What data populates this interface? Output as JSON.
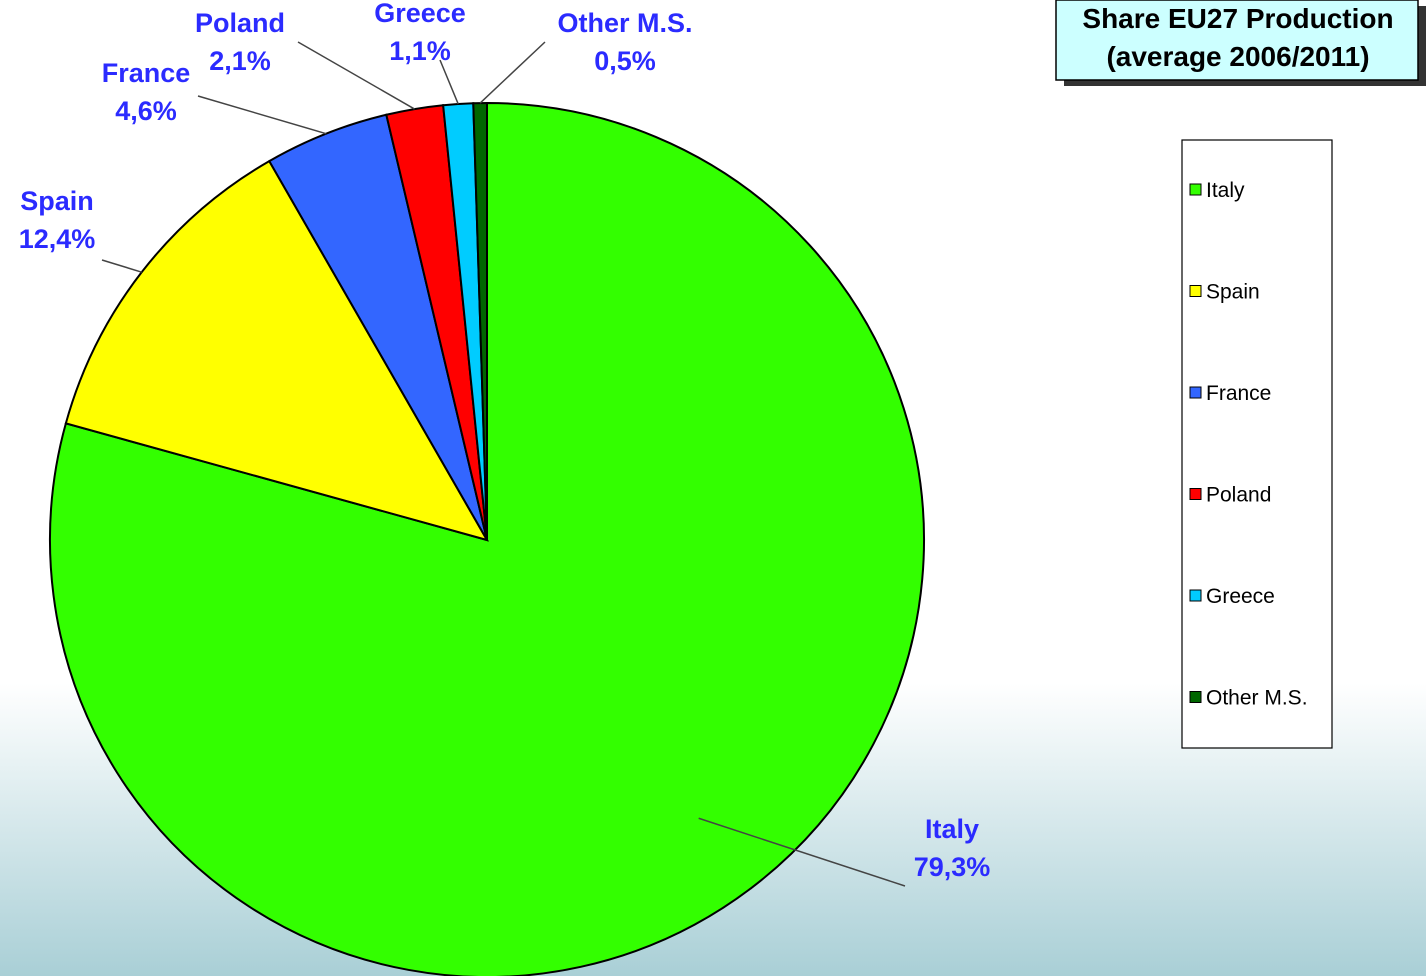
{
  "chart_data": {
    "type": "pie",
    "title": "Share EU27 Production",
    "subtitle": "(average 2006/2011)",
    "categories": [
      "Italy",
      "Spain",
      "France",
      "Poland",
      "Greece",
      "Other M.S."
    ],
    "values": [
      79.3,
      12.4,
      4.6,
      2.1,
      1.1,
      0.5
    ],
    "value_labels": [
      "79,3%",
      "12,4%",
      "4,6%",
      "2,1%",
      "1,1%",
      "0,5%"
    ],
    "colors": [
      "#33ff00",
      "#ffff00",
      "#3366ff",
      "#ff0000",
      "#00ccff",
      "#006600"
    ],
    "legend": "right"
  }
}
